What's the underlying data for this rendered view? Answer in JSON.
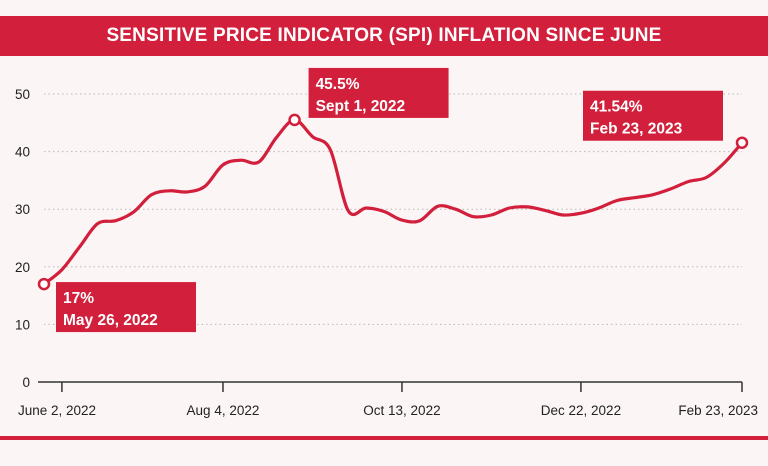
{
  "chart_data": {
    "type": "line",
    "title": "SENSITIVE PRICE INDICATOR (SPI) INFLATION SINCE JUNE",
    "xlabel": "",
    "ylabel": "",
    "ylim": [
      0,
      50
    ],
    "yticks": [
      0,
      10,
      20,
      30,
      40,
      50
    ],
    "grid": true,
    "xaxis": {
      "start": "2022-05-26",
      "end": "2023-02-23"
    },
    "xtick_labels": [
      {
        "date": "2022-06-02",
        "label": "June 2, 2022"
      },
      {
        "date": "2022-08-04",
        "label": "Aug 4, 2022"
      },
      {
        "date": "2022-10-13",
        "label": "Oct 13, 2022"
      },
      {
        "date": "2022-12-22",
        "label": "Dec 22, 2022"
      },
      {
        "date": "2023-02-23",
        "label": "Feb 23, 2023"
      }
    ],
    "series": [
      {
        "color": "#d21f3c",
        "points": [
          [
            "2022-05-26",
            17.0
          ],
          [
            "2022-06-02",
            19.5
          ],
          [
            "2022-06-09",
            23.5
          ],
          [
            "2022-06-16",
            27.5
          ],
          [
            "2022-06-23",
            28.0
          ],
          [
            "2022-06-30",
            29.5
          ],
          [
            "2022-07-07",
            32.5
          ],
          [
            "2022-07-14",
            33.2
          ],
          [
            "2022-07-21",
            33.0
          ],
          [
            "2022-07-28",
            34.0
          ],
          [
            "2022-08-04",
            37.7
          ],
          [
            "2022-08-11",
            38.5
          ],
          [
            "2022-08-18",
            38.2
          ],
          [
            "2022-08-25",
            42.5
          ],
          [
            "2022-09-01",
            45.5
          ],
          [
            "2022-09-08",
            42.6
          ],
          [
            "2022-09-15",
            40.3
          ],
          [
            "2022-09-22",
            29.7
          ],
          [
            "2022-09-29",
            30.2
          ],
          [
            "2022-10-06",
            29.6
          ],
          [
            "2022-10-13",
            28.1
          ],
          [
            "2022-10-20",
            28.0
          ],
          [
            "2022-10-27",
            30.5
          ],
          [
            "2022-11-03",
            30.0
          ],
          [
            "2022-11-10",
            28.7
          ],
          [
            "2022-11-17",
            29.0
          ],
          [
            "2022-11-24",
            30.2
          ],
          [
            "2022-12-01",
            30.4
          ],
          [
            "2022-12-08",
            29.8
          ],
          [
            "2022-12-15",
            29.0
          ],
          [
            "2022-12-22",
            29.3
          ],
          [
            "2022-12-29",
            30.2
          ],
          [
            "2023-01-05",
            31.5
          ],
          [
            "2023-01-12",
            32.0
          ],
          [
            "2023-01-19",
            32.5
          ],
          [
            "2023-01-26",
            33.5
          ],
          [
            "2023-02-02",
            34.8
          ],
          [
            "2023-02-09",
            35.5
          ],
          [
            "2023-02-16",
            38.0
          ],
          [
            "2023-02-23",
            41.54
          ]
        ]
      }
    ],
    "annotations": [
      {
        "date": "2022-05-26",
        "value": 17.0,
        "lines": [
          "17%",
          "May 26, 2022"
        ],
        "placement": "right-below"
      },
      {
        "date": "2022-09-01",
        "value": 45.5,
        "lines": [
          "45.5%",
          "Sept 1, 2022"
        ],
        "placement": "right-above"
      },
      {
        "date": "2023-02-23",
        "value": 41.54,
        "lines": [
          "41.54%",
          "Feb 23, 2023"
        ],
        "placement": "left-above"
      }
    ],
    "colors": {
      "accent": "#d21f3c",
      "background": "#fbf6f5",
      "grid": "#b8b8b8",
      "axis": "#333333",
      "text": "#222222"
    }
  }
}
